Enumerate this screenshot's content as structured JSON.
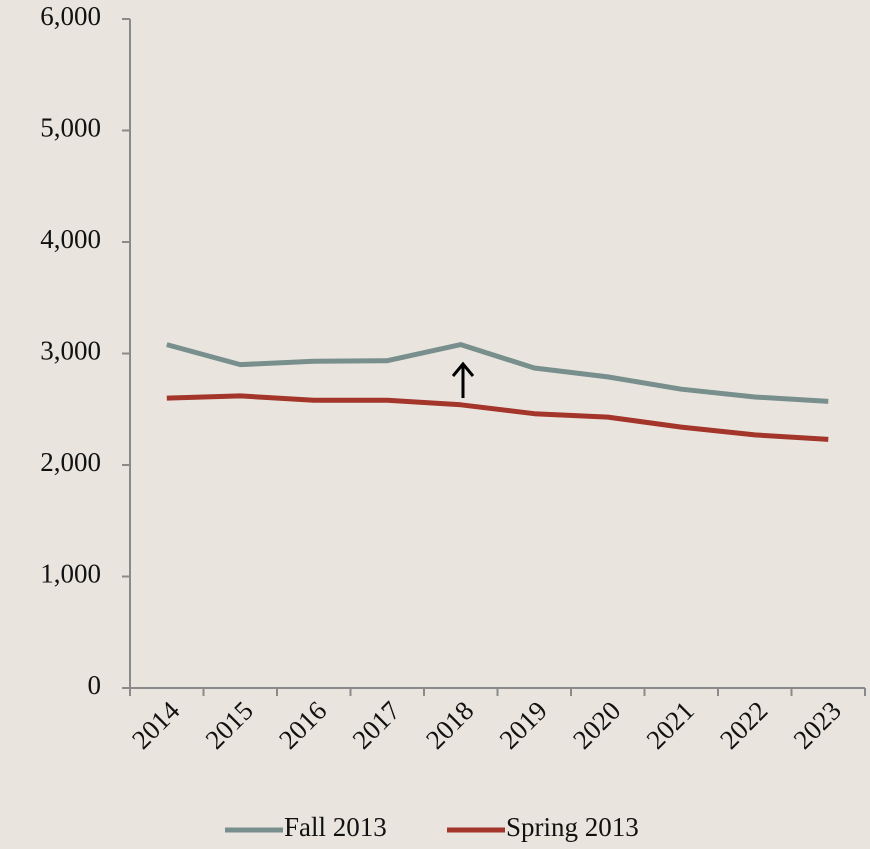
{
  "chart_data": {
    "type": "line",
    "categories": [
      "2014",
      "2015",
      "2016",
      "2017",
      "2018",
      "2019",
      "2020",
      "2021",
      "2022",
      "2023"
    ],
    "series": [
      {
        "name": "Fall 2013",
        "color": "#788f8d",
        "values": [
          3080,
          2900,
          2930,
          2935,
          3080,
          2870,
          2790,
          2680,
          2610,
          2570
        ]
      },
      {
        "name": "Spring 2013",
        "color": "#a3352a",
        "values": [
          2600,
          2620,
          2580,
          2580,
          2540,
          2460,
          2430,
          2340,
          2270,
          2230
        ]
      }
    ],
    "ylim": [
      0,
      6000
    ],
    "yticks": [
      0,
      {
        "value": 1000,
        "label": "1,000"
      },
      {
        "value": 2000,
        "label": "2,000"
      },
      {
        "value": 3000,
        "label": "3,000"
      },
      {
        "value": 4000,
        "label": "4,000"
      },
      {
        "value": 5000,
        "label": "5,000"
      },
      {
        "value": 6000,
        "label": "6,000"
      }
    ],
    "grid": false,
    "legend": "bottom"
  }
}
